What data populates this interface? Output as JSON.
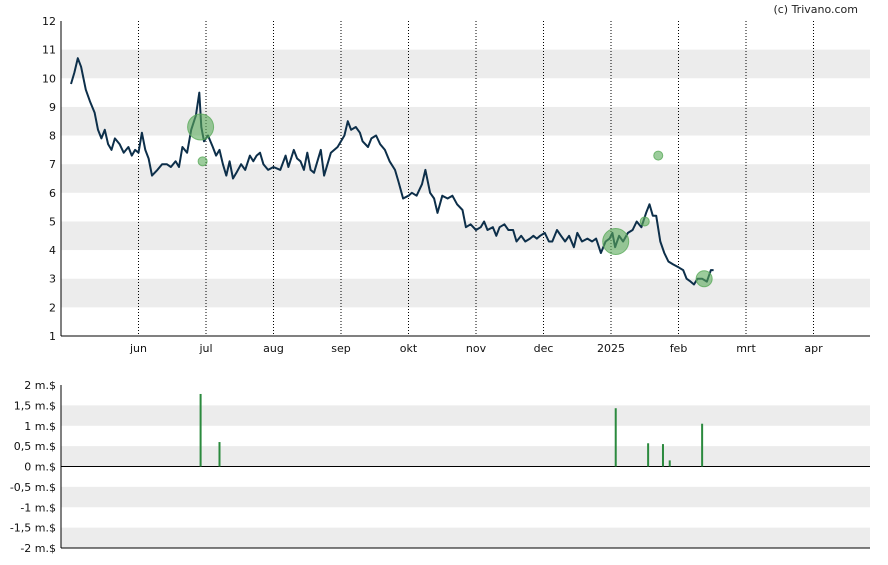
{
  "copyright": "(c) Trivano.com",
  "colors": {
    "price_line": "#0d2f4a",
    "band": "#ececec",
    "bubble": "#5aaa5a",
    "volume_bar": "#2b8a3e",
    "axis": "#000000",
    "grid": "#000000"
  },
  "chart_data": [
    {
      "type": "line",
      "ylim": [
        1,
        12
      ],
      "y_ticks": [
        "1",
        "2",
        "3",
        "4",
        "5",
        "6",
        "7",
        "8",
        "9",
        "10",
        "11",
        "12"
      ],
      "x_ticks": [
        {
          "label": "jun",
          "month": 1
        },
        {
          "label": "jul",
          "month": 2
        },
        {
          "label": "aug",
          "month": 3
        },
        {
          "label": "sep",
          "month": 4
        },
        {
          "label": "okt",
          "month": 5
        },
        {
          "label": "nov",
          "month": 6
        },
        {
          "label": "dec",
          "month": 7
        },
        {
          "label": "2025",
          "month": 8
        },
        {
          "label": "feb",
          "month": 9
        },
        {
          "label": "mrt",
          "month": 10
        },
        {
          "label": "apr",
          "month": 11
        }
      ],
      "x_range_months": [
        0,
        12
      ],
      "grid": "vertical dotted at month starts; alternating horizontal bands",
      "series": [
        {
          "points": [
            [
              0.0,
              9.8
            ],
            [
              0.05,
              10.2
            ],
            [
              0.1,
              10.7
            ],
            [
              0.15,
              10.4
            ],
            [
              0.22,
              9.6
            ],
            [
              0.28,
              9.2
            ],
            [
              0.35,
              8.8
            ],
            [
              0.4,
              8.2
            ],
            [
              0.45,
              7.9
            ],
            [
              0.5,
              8.2
            ],
            [
              0.55,
              7.7
            ],
            [
              0.6,
              7.5
            ],
            [
              0.65,
              7.9
            ],
            [
              0.72,
              7.7
            ],
            [
              0.78,
              7.4
            ],
            [
              0.85,
              7.6
            ],
            [
              0.9,
              7.3
            ],
            [
              0.95,
              7.5
            ],
            [
              1.0,
              7.4
            ],
            [
              1.05,
              8.1
            ],
            [
              1.1,
              7.5
            ],
            [
              1.15,
              7.2
            ],
            [
              1.2,
              6.6
            ],
            [
              1.28,
              6.8
            ],
            [
              1.35,
              7.0
            ],
            [
              1.42,
              7.0
            ],
            [
              1.48,
              6.9
            ],
            [
              1.55,
              7.1
            ],
            [
              1.6,
              6.9
            ],
            [
              1.65,
              7.6
            ],
            [
              1.72,
              7.4
            ],
            [
              1.78,
              8.2
            ],
            [
              1.85,
              8.7
            ],
            [
              1.9,
              9.5
            ],
            [
              1.93,
              8.3
            ],
            [
              1.97,
              7.8
            ],
            [
              2.03,
              8.0
            ],
            [
              2.1,
              7.6
            ],
            [
              2.15,
              7.3
            ],
            [
              2.2,
              7.5
            ],
            [
              2.25,
              7.0
            ],
            [
              2.3,
              6.6
            ],
            [
              2.35,
              7.1
            ],
            [
              2.4,
              6.5
            ],
            [
              2.45,
              6.7
            ],
            [
              2.52,
              7.0
            ],
            [
              2.58,
              6.8
            ],
            [
              2.65,
              7.3
            ],
            [
              2.7,
              7.1
            ],
            [
              2.75,
              7.3
            ],
            [
              2.8,
              7.4
            ],
            [
              2.85,
              7.0
            ],
            [
              2.92,
              6.8
            ],
            [
              3.0,
              6.9
            ],
            [
              3.1,
              6.8
            ],
            [
              3.18,
              7.3
            ],
            [
              3.22,
              6.9
            ],
            [
              3.3,
              7.5
            ],
            [
              3.35,
              7.2
            ],
            [
              3.4,
              7.1
            ],
            [
              3.45,
              6.8
            ],
            [
              3.5,
              7.4
            ],
            [
              3.55,
              6.8
            ],
            [
              3.6,
              6.7
            ],
            [
              3.65,
              7.1
            ],
            [
              3.7,
              7.5
            ],
            [
              3.75,
              6.6
            ],
            [
              3.85,
              7.4
            ],
            [
              3.95,
              7.6
            ],
            [
              4.05,
              8.0
            ],
            [
              4.1,
              8.5
            ],
            [
              4.15,
              8.2
            ],
            [
              4.22,
              8.3
            ],
            [
              4.28,
              8.1
            ],
            [
              4.32,
              7.8
            ],
            [
              4.4,
              7.6
            ],
            [
              4.45,
              7.9
            ],
            [
              4.52,
              8.0
            ],
            [
              4.58,
              7.7
            ],
            [
              4.65,
              7.5
            ],
            [
              4.72,
              7.1
            ],
            [
              4.8,
              6.8
            ],
            [
              4.85,
              6.4
            ],
            [
              4.92,
              5.8
            ],
            [
              5.0,
              5.9
            ],
            [
              5.05,
              6.0
            ],
            [
              5.12,
              5.9
            ],
            [
              5.2,
              6.3
            ],
            [
              5.25,
              6.8
            ],
            [
              5.32,
              6.0
            ],
            [
              5.38,
              5.8
            ],
            [
              5.43,
              5.3
            ],
            [
              5.5,
              5.9
            ],
            [
              5.58,
              5.8
            ],
            [
              5.65,
              5.9
            ],
            [
              5.72,
              5.6
            ],
            [
              5.8,
              5.4
            ],
            [
              5.85,
              4.8
            ],
            [
              5.92,
              4.9
            ],
            [
              6.0,
              4.7
            ],
            [
              6.07,
              4.8
            ],
            [
              6.12,
              5.0
            ],
            [
              6.17,
              4.7
            ],
            [
              6.25,
              4.8
            ],
            [
              6.3,
              4.5
            ],
            [
              6.35,
              4.8
            ],
            [
              6.42,
              4.9
            ],
            [
              6.48,
              4.7
            ],
            [
              6.55,
              4.7
            ],
            [
              6.6,
              4.3
            ],
            [
              6.67,
              4.5
            ],
            [
              6.73,
              4.3
            ],
            [
              6.8,
              4.4
            ],
            [
              6.85,
              4.5
            ],
            [
              6.9,
              4.4
            ],
            [
              6.95,
              4.5
            ],
            [
              7.02,
              4.6
            ],
            [
              7.08,
              4.3
            ],
            [
              7.13,
              4.3
            ],
            [
              7.2,
              4.7
            ],
            [
              7.26,
              4.5
            ],
            [
              7.32,
              4.3
            ],
            [
              7.38,
              4.5
            ],
            [
              7.45,
              4.1
            ],
            [
              7.5,
              4.6
            ],
            [
              7.57,
              4.3
            ],
            [
              7.65,
              4.4
            ],
            [
              7.72,
              4.3
            ],
            [
              7.78,
              4.4
            ],
            [
              7.85,
              3.9
            ],
            [
              7.92,
              4.3
            ],
            [
              7.98,
              4.4
            ],
            [
              8.02,
              4.6
            ],
            [
              8.06,
              4.1
            ],
            [
              8.12,
              4.5
            ],
            [
              8.18,
              4.3
            ],
            [
              8.25,
              4.6
            ],
            [
              8.32,
              4.7
            ],
            [
              8.38,
              5.0
            ],
            [
              8.45,
              4.8
            ],
            [
              8.52,
              5.3
            ],
            [
              8.57,
              5.6
            ],
            [
              8.62,
              5.2
            ],
            [
              8.67,
              5.2
            ],
            [
              8.73,
              4.3
            ],
            [
              8.79,
              3.9
            ],
            [
              8.85,
              3.6
            ],
            [
              8.92,
              3.5
            ],
            [
              9.0,
              3.4
            ],
            [
              9.07,
              3.3
            ],
            [
              9.12,
              3.0
            ],
            [
              9.18,
              2.9
            ],
            [
              9.23,
              2.8
            ],
            [
              9.28,
              3.0
            ],
            [
              9.35,
              3.0
            ],
            [
              9.42,
              2.9
            ],
            [
              9.48,
              3.3
            ],
            [
              9.52,
              3.3
            ]
          ]
        }
      ],
      "bubbles": [
        {
          "x": 1.92,
          "y": 8.3,
          "size": 3
        },
        {
          "x": 1.95,
          "y": 7.1,
          "size": 1
        },
        {
          "x": 8.07,
          "y": 4.3,
          "size": 3
        },
        {
          "x": 8.5,
          "y": 5.0,
          "size": 1
        },
        {
          "x": 8.7,
          "y": 7.3,
          "size": 1
        },
        {
          "x": 9.38,
          "y": 3.0,
          "size": 2
        }
      ]
    },
    {
      "type": "bar",
      "ylim": [
        -2,
        2
      ],
      "y_ticks": [
        "2 m.$",
        "1,5 m.$",
        "1 m.$",
        "0,5 m.$",
        "0 m.$",
        "-0,5 m.$",
        "-1 m.$",
        "-1,5 m.$",
        "-2 m.$"
      ],
      "series": [
        {
          "bars": [
            {
              "x": 1.92,
              "value": 1.78
            },
            {
              "x": 2.2,
              "value": 0.6
            },
            {
              "x": 8.07,
              "value": 1.43
            },
            {
              "x": 8.55,
              "value": 0.57
            },
            {
              "x": 8.77,
              "value": 0.55
            },
            {
              "x": 8.87,
              "value": 0.15
            },
            {
              "x": 9.35,
              "value": 1.05
            }
          ]
        }
      ]
    }
  ]
}
